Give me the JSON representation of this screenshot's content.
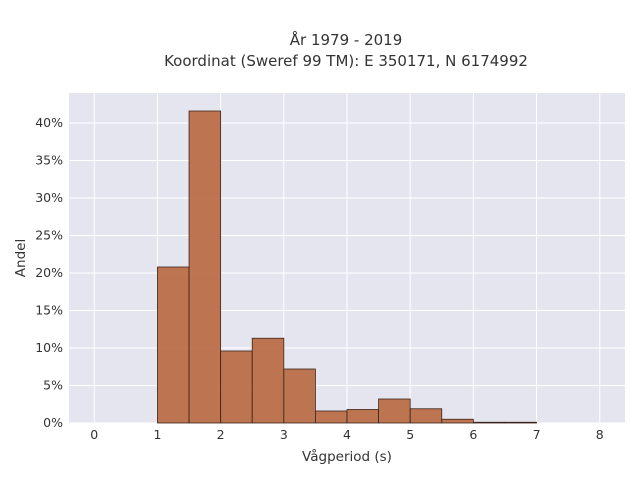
{
  "chart_data": {
    "type": "bar",
    "title_line1": "År 1979 - 2019",
    "title_line2": "Koordinat (Sweref 99 TM): E 350171, N 6174992",
    "xlabel": "Vågperiod (s)",
    "ylabel": "Andel",
    "xlim": [
      -0.4,
      8.4
    ],
    "ylim": [
      0,
      0.44
    ],
    "x_ticks": [
      "0",
      "1",
      "2",
      "3",
      "4",
      "5",
      "6",
      "7",
      "8"
    ],
    "y_ticks": [
      "0%",
      "5%",
      "10%",
      "15%",
      "20%",
      "25%",
      "30%",
      "35%",
      "40%"
    ],
    "bin_width": 0.5,
    "bins": [
      {
        "x0": 1.0,
        "value": 0.208
      },
      {
        "x0": 1.5,
        "value": 0.416
      },
      {
        "x0": 2.0,
        "value": 0.096
      },
      {
        "x0": 2.5,
        "value": 0.113
      },
      {
        "x0": 3.0,
        "value": 0.072
      },
      {
        "x0": 3.5,
        "value": 0.016
      },
      {
        "x0": 4.0,
        "value": 0.018
      },
      {
        "x0": 4.5,
        "value": 0.032
      },
      {
        "x0": 5.0,
        "value": 0.019
      },
      {
        "x0": 5.5,
        "value": 0.005
      },
      {
        "x0": 6.0,
        "value": 0.001
      },
      {
        "x0": 6.5,
        "value": 0.001
      }
    ],
    "grid": true,
    "background_color": "#e5e5f0",
    "bar_color": "#b86a43"
  }
}
